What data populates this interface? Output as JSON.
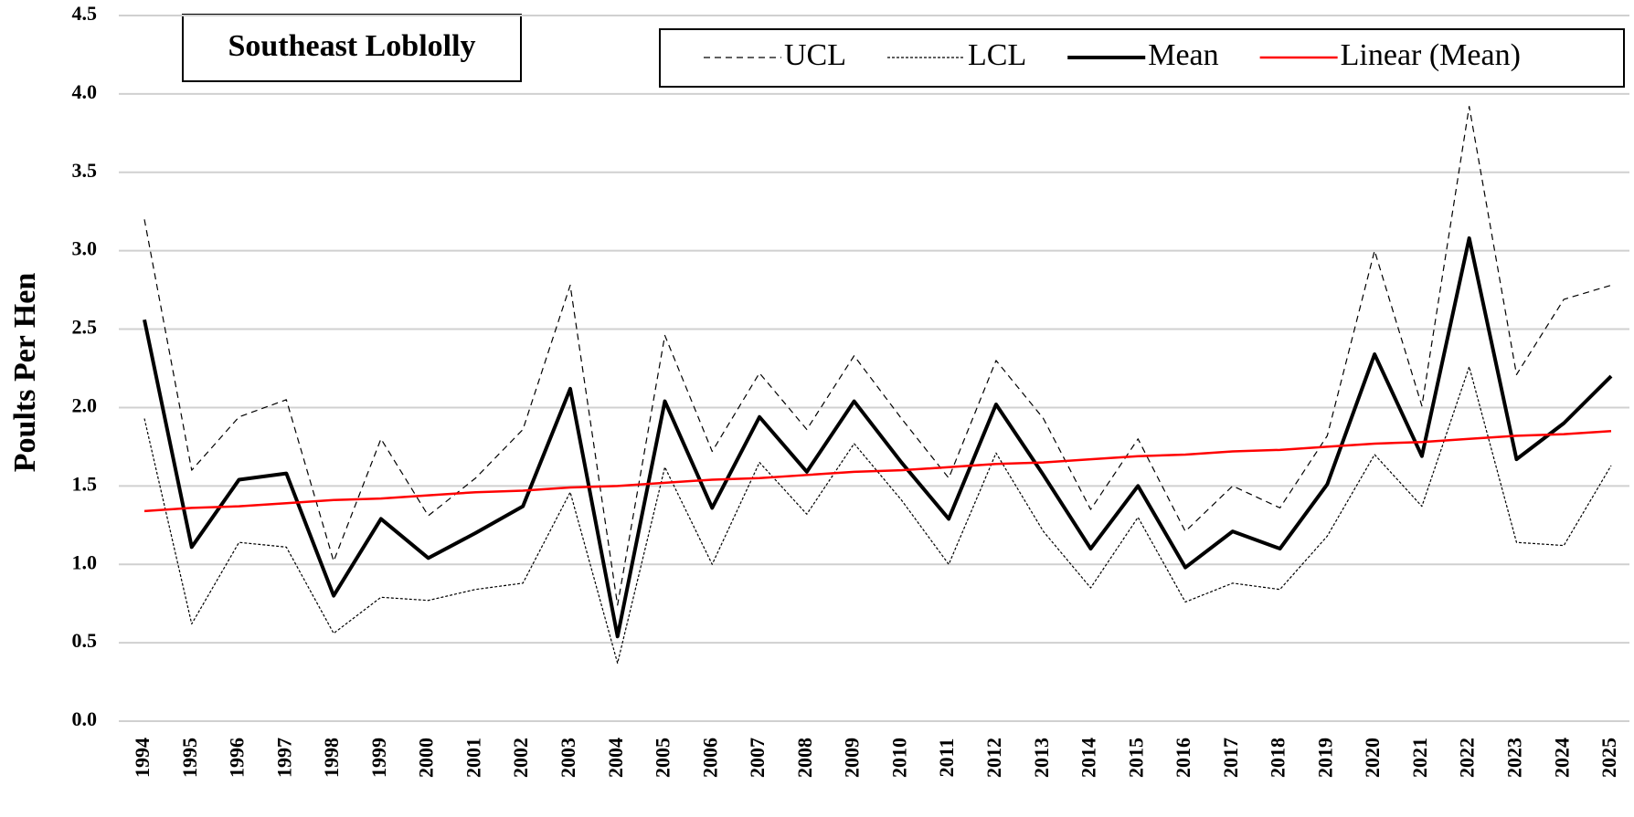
{
  "chart_data": {
    "type": "line",
    "title": "Southeast Loblolly",
    "y_label": "Poults Per Hen",
    "categories": [
      "1994",
      "1995",
      "1996",
      "1997",
      "1998",
      "1999",
      "2000",
      "2001",
      "2002",
      "2003",
      "2004",
      "2005",
      "2006",
      "2007",
      "2008",
      "2009",
      "2010",
      "2011",
      "2012",
      "2013",
      "2014",
      "2015",
      "2016",
      "2017",
      "2018",
      "2019",
      "2020",
      "2021",
      "2022",
      "2023",
      "2024",
      "2025"
    ],
    "series": [
      {
        "name": "UCL",
        "color": "#000000",
        "style": "dashed",
        "width": 1.2,
        "values": [
          3.2,
          1.6,
          1.94,
          2.05,
          1.02,
          1.8,
          1.31,
          1.55,
          1.86,
          2.78,
          0.74,
          2.46,
          1.72,
          2.22,
          1.86,
          2.33,
          1.93,
          1.55,
          2.3,
          1.93,
          1.35,
          1.8,
          1.21,
          1.5,
          1.36,
          1.82,
          3.0,
          2.01,
          3.92,
          2.21,
          2.69,
          2.78
        ]
      },
      {
        "name": "LCL",
        "color": "#000000",
        "style": "dotted",
        "width": 1.2,
        "values": [
          1.93,
          0.62,
          1.14,
          1.11,
          0.56,
          0.79,
          0.77,
          0.84,
          0.88,
          1.46,
          0.37,
          1.62,
          1.0,
          1.65,
          1.32,
          1.77,
          1.41,
          1.0,
          1.71,
          1.21,
          0.85,
          1.3,
          0.76,
          0.88,
          0.84,
          1.18,
          1.7,
          1.37,
          2.26,
          1.14,
          1.12,
          1.63
        ]
      },
      {
        "name": "Mean",
        "color": "#000000",
        "style": "solid",
        "width": 4,
        "values": [
          2.56,
          1.11,
          1.54,
          1.58,
          0.8,
          1.29,
          1.04,
          1.2,
          1.37,
          2.12,
          0.54,
          2.04,
          1.36,
          1.94,
          1.59,
          2.04,
          1.65,
          1.29,
          2.02,
          1.57,
          1.1,
          1.5,
          0.98,
          1.21,
          1.1,
          1.51,
          2.34,
          1.69,
          3.08,
          1.67,
          1.9,
          2.2
        ]
      },
      {
        "name": "Linear (Mean)",
        "color": "#ff0000",
        "style": "solid",
        "width": 2.5,
        "values": [
          1.34,
          1.36,
          1.37,
          1.39,
          1.41,
          1.42,
          1.44,
          1.46,
          1.47,
          1.49,
          1.5,
          1.52,
          1.54,
          1.55,
          1.57,
          1.59,
          1.6,
          1.62,
          1.64,
          1.65,
          1.67,
          1.69,
          1.7,
          1.72,
          1.73,
          1.75,
          1.77,
          1.78,
          1.8,
          1.82,
          1.83,
          1.85
        ]
      }
    ],
    "ylim": [
      0,
      4.5
    ],
    "yticks": [
      {
        "value": 0,
        "label": "0.0"
      },
      0.5,
      {
        "value": 1,
        "label": "1.0"
      },
      1.5,
      {
        "value": 2,
        "label": "2.0"
      },
      2.5,
      {
        "value": 3,
        "label": "3.0"
      },
      3.5,
      {
        "value": 4,
        "label": "4.0"
      },
      4.5
    ],
    "grid": true,
    "legend": "top-right"
  }
}
